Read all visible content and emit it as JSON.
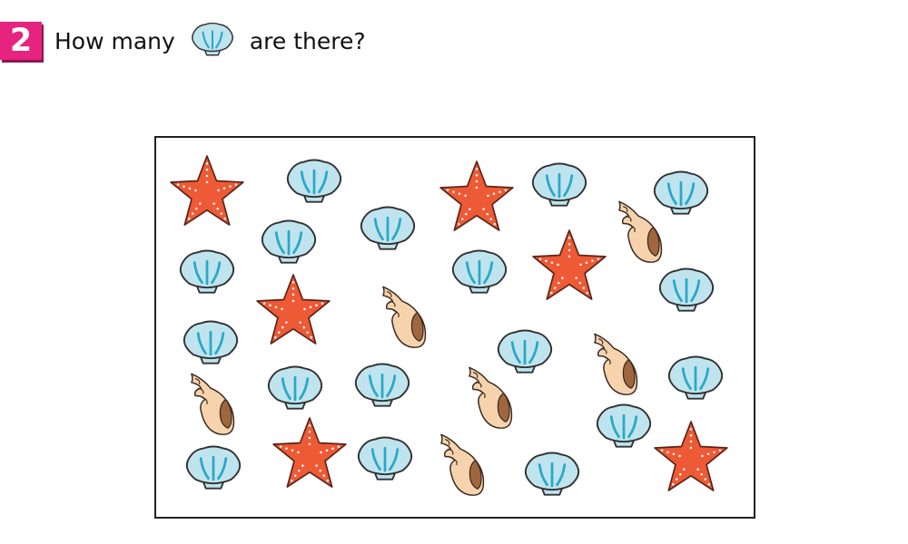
{
  "question": {
    "number": "2",
    "text_before": "How many",
    "text_after": "are there?",
    "inline_icon": "scallop-shell-icon"
  },
  "colors": {
    "badge": "#e6237f",
    "shell_fill": "#bfe4ee",
    "shell_stroke": "#2aa8c8",
    "starfish_fill": "#ee5a35",
    "conch_fill": "#f6d3ad",
    "conch_shadow": "#a0673e"
  },
  "picture": {
    "shell_types": [
      "scallop-shell-icon",
      "starfish-icon",
      "conch-shell-icon"
    ]
  }
}
